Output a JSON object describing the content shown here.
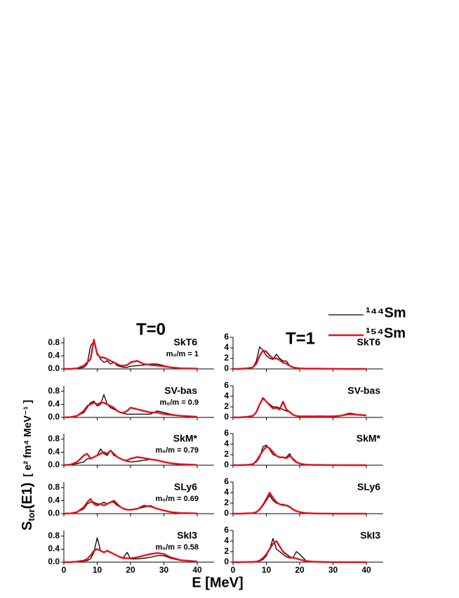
{
  "figure": {
    "column_titles": [
      "T=0",
      "T=1"
    ],
    "xlabel": "E  [MeV]",
    "ylabel": {
      "symbol": "S",
      "subscript": "tor",
      "argument": "(E1)",
      "units": "[ e² fm⁴ MeV⁻¹ ]"
    }
  },
  "chart_data": [
    {
      "type": "line",
      "title": "SkT6",
      "annotation": "m₀/m = 1",
      "x": [
        0,
        2,
        4,
        6,
        7,
        8,
        9,
        10,
        11,
        12,
        13,
        14,
        15,
        16,
        17,
        18,
        19,
        20,
        22,
        24,
        26,
        28,
        30,
        32,
        35,
        40
      ],
      "xlim": [
        0,
        45
      ],
      "xticks": [
        0,
        10,
        20,
        30,
        40
      ],
      "ylim": [
        0,
        0.97
      ],
      "yticks": [
        {
          "value": 0,
          "label": "0.0"
        },
        {
          "value": 0.4,
          "label": "0.4"
        },
        {
          "value": 0.8,
          "label": "0.8"
        }
      ],
      "series": [
        {
          "name": "¹⁴⁴Sm",
          "color": "#000000",
          "values": [
            0,
            0,
            0.01,
            0.05,
            0.15,
            0.7,
            0.85,
            0.5,
            0.3,
            0.2,
            0.25,
            0.15,
            0.2,
            0.1,
            0.07,
            0.05,
            0.05,
            0.08,
            0.1,
            0.12,
            0.15,
            0.15,
            0.1,
            0.05,
            0.02,
            0
          ]
        },
        {
          "name": "¹⁵⁴Sm",
          "color": "#e8101a",
          "values": [
            0,
            0,
            0.02,
            0.1,
            0.2,
            0.3,
            0.9,
            0.45,
            0.35,
            0.35,
            0.3,
            0.25,
            0.2,
            0.15,
            0.1,
            0.1,
            0.12,
            0.2,
            0.25,
            0.15,
            0.12,
            0.1,
            0.08,
            0.05,
            0.02,
            0.01
          ]
        }
      ]
    },
    {
      "type": "line",
      "title": "SkT6",
      "x": [
        0,
        2,
        4,
        6,
        7,
        8,
        9,
        10,
        11,
        12,
        13,
        14,
        15,
        16,
        17,
        18,
        19,
        20,
        22,
        24,
        26,
        28,
        30,
        32,
        35,
        40
      ],
      "xlim": [
        0,
        45
      ],
      "xticks": [
        0,
        10,
        20,
        30,
        40
      ],
      "ylim": [
        0,
        6
      ],
      "yticks": [
        0,
        2,
        4,
        6
      ],
      "series": [
        {
          "color": "#000000",
          "values": [
            0,
            0,
            0.1,
            0.3,
            1.5,
            4.2,
            3.5,
            2.5,
            2,
            1.8,
            2.8,
            2,
            1.5,
            1.5,
            0.6,
            0.3,
            0.2,
            0.1,
            0.05,
            0.05,
            0.05,
            0.03,
            0.02,
            0.01,
            0,
            0
          ]
        },
        {
          "color": "#e8101a",
          "values": [
            0,
            0,
            0.1,
            0.3,
            1,
            2.5,
            3.5,
            3.3,
            2.5,
            2,
            2,
            1.7,
            1.2,
            1,
            0.6,
            0.3,
            0.2,
            0.1,
            0.05,
            0.05,
            0.05,
            0.03,
            0.02,
            0.01,
            0,
            0
          ]
        }
      ]
    },
    {
      "type": "line",
      "title": "SV-bas",
      "annotation": "m₀/m = 0.9",
      "x": [
        0,
        2,
        4,
        6,
        7,
        8,
        9,
        10,
        11,
        12,
        13,
        14,
        15,
        16,
        17,
        18,
        19,
        20,
        22,
        24,
        26,
        28,
        30,
        32,
        35,
        40
      ],
      "xlim": [
        0,
        45
      ],
      "xticks": [
        0,
        10,
        20,
        30,
        40
      ],
      "ylim": [
        0,
        0.97
      ],
      "yticks": [
        {
          "value": 0,
          "label": "0.0"
        },
        {
          "value": 0.4,
          "label": "0.4"
        },
        {
          "value": 0.8,
          "label": "0.8"
        }
      ],
      "series": [
        {
          "color": "#000000",
          "values": [
            0,
            0.01,
            0.05,
            0.15,
            0.3,
            0.45,
            0.5,
            0.35,
            0.4,
            0.7,
            0.4,
            0.3,
            0.25,
            0.2,
            0.15,
            0.12,
            0.1,
            0.1,
            0.1,
            0.1,
            0.1,
            0.2,
            0.15,
            0.1,
            0.05,
            0.02
          ]
        },
        {
          "color": "#e8101a",
          "values": [
            0,
            0.01,
            0.05,
            0.2,
            0.35,
            0.4,
            0.45,
            0.4,
            0.45,
            0.45,
            0.4,
            0.35,
            0.3,
            0.2,
            0.15,
            0.15,
            0.2,
            0.3,
            0.25,
            0.2,
            0.15,
            0.15,
            0.1,
            0.08,
            0.05,
            0.02
          ]
        }
      ]
    },
    {
      "type": "line",
      "title": "SV-bas",
      "x": [
        0,
        2,
        4,
        6,
        7,
        8,
        9,
        10,
        11,
        12,
        13,
        14,
        15,
        16,
        17,
        18,
        19,
        20,
        22,
        24,
        26,
        28,
        30,
        32,
        35,
        40
      ],
      "xlim": [
        0,
        45
      ],
      "xticks": [
        0,
        10,
        20,
        30,
        40
      ],
      "ylim": [
        0,
        6
      ],
      "yticks": [
        0,
        2,
        4,
        6
      ],
      "series": [
        {
          "color": "#000000",
          "values": [
            0,
            0,
            0.1,
            0.3,
            1,
            2.5,
            3.5,
            3,
            2.5,
            2,
            2,
            1.8,
            1.5,
            1.2,
            1,
            0.5,
            0.3,
            0.2,
            0.1,
            0.1,
            0.3,
            0.2,
            0.2,
            0.3,
            0.8,
            0.3
          ]
        },
        {
          "color": "#e8101a",
          "values": [
            0,
            0,
            0.1,
            0.3,
            1,
            2.5,
            3.7,
            3,
            2.3,
            1.7,
            1.8,
            1.5,
            3,
            1.5,
            1,
            0.5,
            0.3,
            0.2,
            0.2,
            0.2,
            0.2,
            0.2,
            0.2,
            0.3,
            0.6,
            0.4
          ]
        }
      ]
    },
    {
      "type": "line",
      "title": "SkM*",
      "annotation": "m₀/m = 0.79",
      "x": [
        0,
        2,
        4,
        6,
        7,
        8,
        9,
        10,
        11,
        12,
        13,
        14,
        15,
        16,
        17,
        18,
        19,
        20,
        22,
        24,
        26,
        28,
        30,
        32,
        35,
        40
      ],
      "xlim": [
        0,
        45
      ],
      "xticks": [
        0,
        10,
        20,
        30,
        40
      ],
      "ylim": [
        0,
        0.97
      ],
      "yticks": [
        {
          "value": 0,
          "label": "0.0"
        },
        {
          "value": 0.4,
          "label": "0.4"
        },
        {
          "value": 0.8,
          "label": "0.8"
        }
      ],
      "series": [
        {
          "color": "#000000",
          "values": [
            0,
            0.01,
            0.05,
            0.1,
            0.2,
            0.2,
            0.25,
            0.3,
            0.5,
            0.35,
            0.3,
            0.45,
            0.3,
            0.25,
            0.2,
            0.15,
            0.12,
            0.1,
            0.12,
            0.15,
            0.18,
            0.15,
            0.1,
            0.05,
            0.02,
            0.01
          ]
        },
        {
          "color": "#e8101a",
          "values": [
            0,
            0.02,
            0.1,
            0.3,
            0.35,
            0.2,
            0.25,
            0.3,
            0.35,
            0.4,
            0.35,
            0.45,
            0.35,
            0.25,
            0.2,
            0.15,
            0.15,
            0.2,
            0.25,
            0.22,
            0.18,
            0.15,
            0.1,
            0.06,
            0.03,
            0.01
          ]
        }
      ]
    },
    {
      "type": "line",
      "title": "SkM*",
      "x": [
        0,
        2,
        4,
        6,
        7,
        8,
        9,
        10,
        11,
        12,
        13,
        14,
        15,
        16,
        17,
        18,
        19,
        20,
        22,
        24,
        26,
        28,
        30,
        32,
        35,
        40
      ],
      "xlim": [
        0,
        45
      ],
      "xticks": [
        0,
        10,
        20,
        30,
        40
      ],
      "ylim": [
        0,
        6
      ],
      "yticks": [
        0,
        2,
        4,
        6
      ],
      "series": [
        {
          "color": "#000000",
          "values": [
            0,
            0,
            0.05,
            0.2,
            0.6,
            1.5,
            3.5,
            3.8,
            3,
            2,
            1.8,
            1.5,
            1.5,
            1.5,
            2.2,
            1,
            0.5,
            0.3,
            0.1,
            0.05,
            0.05,
            0.03,
            0.02,
            0.01,
            0,
            0
          ]
        },
        {
          "color": "#e8101a",
          "values": [
            0,
            0,
            0.05,
            0.2,
            0.8,
            1.8,
            2.8,
            3.5,
            3.2,
            2.5,
            1.8,
            1.5,
            1.5,
            1.3,
            1.8,
            1.2,
            0.6,
            0.3,
            0.1,
            0.05,
            0.05,
            0.03,
            0.02,
            0.01,
            0,
            0
          ]
        }
      ]
    },
    {
      "type": "line",
      "title": "SLy6",
      "annotation": "m₀/m = 0.69",
      "x": [
        0,
        2,
        4,
        6,
        7,
        8,
        9,
        10,
        11,
        12,
        13,
        14,
        15,
        16,
        17,
        18,
        19,
        20,
        22,
        24,
        26,
        28,
        30,
        32,
        35,
        40
      ],
      "xlim": [
        0,
        45
      ],
      "xticks": [
        0,
        10,
        20,
        30,
        40
      ],
      "ylim": [
        0,
        0.97
      ],
      "yticks": [
        {
          "value": 0,
          "label": "0.0"
        },
        {
          "value": 0.4,
          "label": "0.4"
        },
        {
          "value": 0.8,
          "label": "0.8"
        }
      ],
      "series": [
        {
          "color": "#000000",
          "values": [
            0,
            0.01,
            0.05,
            0.15,
            0.3,
            0.35,
            0.35,
            0.3,
            0.3,
            0.35,
            0.3,
            0.35,
            0.35,
            0.25,
            0.2,
            0.15,
            0.12,
            0.12,
            0.15,
            0.2,
            0.25,
            0.15,
            0.1,
            0.05,
            0.02,
            0.01
          ]
        },
        {
          "color": "#e8101a",
          "values": [
            0,
            0.01,
            0.05,
            0.2,
            0.35,
            0.45,
            0.3,
            0.25,
            0.3,
            0.25,
            0.3,
            0.35,
            0.4,
            0.3,
            0.2,
            0.15,
            0.12,
            0.12,
            0.15,
            0.25,
            0.22,
            0.15,
            0.1,
            0.05,
            0.02,
            0.01
          ]
        }
      ]
    },
    {
      "type": "line",
      "title": "SLy6",
      "x": [
        0,
        2,
        4,
        6,
        7,
        8,
        9,
        10,
        11,
        12,
        13,
        14,
        15,
        16,
        17,
        18,
        19,
        20,
        22,
        24,
        26,
        28,
        30,
        32,
        35,
        40
      ],
      "xlim": [
        0,
        45
      ],
      "xticks": [
        0,
        10,
        20,
        30,
        40
      ],
      "ylim": [
        0,
        6
      ],
      "yticks": [
        0,
        2,
        4,
        6
      ],
      "series": [
        {
          "color": "#000000",
          "values": [
            0,
            0,
            0.05,
            0.1,
            0.3,
            0.8,
            1.5,
            2.5,
            3.5,
            2.5,
            2,
            1.8,
            1.8,
            1.5,
            1.2,
            0.8,
            0.5,
            0.3,
            0.1,
            0.05,
            0.03,
            0.02,
            0.01,
            0,
            0,
            0
          ]
        },
        {
          "color": "#e8101a",
          "values": [
            0,
            0,
            0.05,
            0.1,
            0.3,
            0.8,
            1.7,
            2.8,
            4,
            3,
            2.2,
            1.8,
            1.6,
            1.6,
            1.3,
            0.8,
            0.5,
            0.3,
            0.1,
            0.05,
            0.03,
            0.02,
            0.01,
            0,
            0,
            0
          ]
        }
      ]
    },
    {
      "type": "line",
      "title": "SkI3",
      "annotation": "m₀/m = 0.58",
      "x": [
        0,
        2,
        4,
        6,
        7,
        8,
        9,
        10,
        11,
        12,
        13,
        14,
        15,
        16,
        17,
        18,
        19,
        20,
        22,
        24,
        26,
        28,
        30,
        32,
        35,
        40
      ],
      "xlim": [
        0,
        45
      ],
      "xticks": [
        0,
        10,
        20,
        30,
        40
      ],
      "ylim": [
        0,
        0.97
      ],
      "yticks": [
        {
          "value": 0,
          "label": "0.0"
        },
        {
          "value": 0.4,
          "label": "0.4"
        },
        {
          "value": 0.8,
          "label": "0.8"
        }
      ],
      "series": [
        {
          "color": "#000000",
          "values": [
            0,
            0,
            0.01,
            0.03,
            0.05,
            0.1,
            0.3,
            0.75,
            0.35,
            0.3,
            0.35,
            0.3,
            0.25,
            0.2,
            0.15,
            0.15,
            0.3,
            0.1,
            0.1,
            0.12,
            0.15,
            0.2,
            0.2,
            0.12,
            0.05,
            0.02
          ]
        },
        {
          "color": "#e8101a",
          "values": [
            0,
            0,
            0.02,
            0.05,
            0.1,
            0.2,
            0.35,
            0.4,
            0.35,
            0.3,
            0.35,
            0.3,
            0.25,
            0.2,
            0.15,
            0.12,
            0.12,
            0.12,
            0.15,
            0.2,
            0.25,
            0.28,
            0.25,
            0.15,
            0.06,
            0.02
          ]
        }
      ]
    },
    {
      "type": "line",
      "title": "SkI3",
      "x": [
        0,
        2,
        4,
        6,
        7,
        8,
        9,
        10,
        11,
        12,
        13,
        14,
        15,
        16,
        17,
        18,
        19,
        20,
        22,
        24,
        26,
        28,
        30,
        32,
        35,
        40
      ],
      "xlim": [
        0,
        45
      ],
      "xticks": [
        0,
        10,
        20,
        30,
        40
      ],
      "ylim": [
        0,
        6
      ],
      "yticks": [
        0,
        2,
        4,
        6
      ],
      "series": [
        {
          "color": "#000000",
          "values": [
            0,
            0,
            0.02,
            0.05,
            0.1,
            0.2,
            0.5,
            1.2,
            2.5,
            4.5,
            2.5,
            2,
            1.5,
            1,
            0.8,
            0.8,
            2,
            1.5,
            0.2,
            0.1,
            0.05,
            0.02,
            0.01,
            0,
            0,
            0
          ]
        },
        {
          "color": "#e8101a",
          "values": [
            0,
            0,
            0.02,
            0.05,
            0.1,
            0.3,
            0.8,
            1.5,
            2.5,
            3.5,
            4,
            3,
            2,
            1.5,
            1,
            0.8,
            0.7,
            0.5,
            0.2,
            0.1,
            0.05,
            0.02,
            0.01,
            0,
            0,
            0
          ]
        }
      ]
    }
  ]
}
